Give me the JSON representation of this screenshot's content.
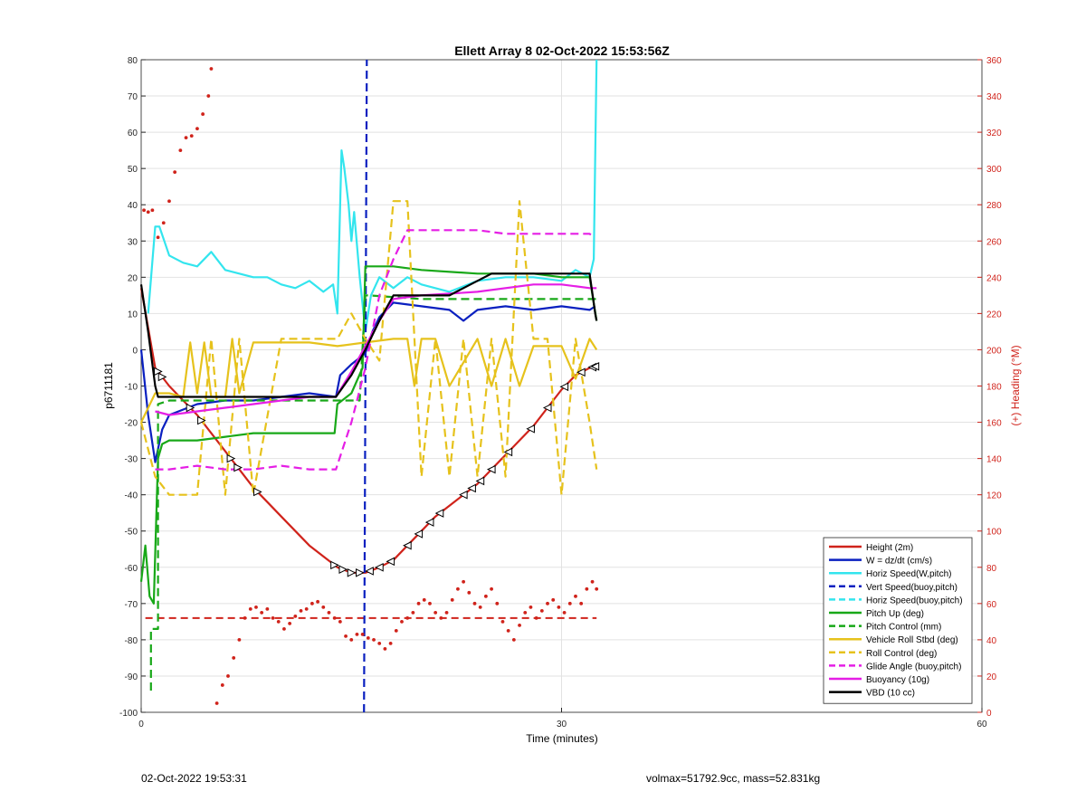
{
  "footer": {
    "left": "02-Oct-2022 19:53:31",
    "right": "volmax=51792.9cc, mass=52.831kg"
  },
  "chart_data": {
    "type": "line",
    "title": "Ellett Array 8 02-Oct-2022 15:53:56Z",
    "xlabel": "Time (minutes)",
    "ylabel": "p6711181",
    "ylabel_right": "(+) Heading (°M)",
    "xlim": [
      0,
      60
    ],
    "ylim": [
      -100,
      80
    ],
    "ylim_right": [
      0,
      360
    ],
    "xticks": [
      0,
      30,
      60
    ],
    "yticks": [
      -100,
      -90,
      -80,
      -70,
      -60,
      -50,
      -40,
      -30,
      -20,
      -10,
      0,
      10,
      20,
      30,
      40,
      50,
      60,
      70,
      80
    ],
    "yticks_right": [
      0,
      20,
      40,
      60,
      80,
      100,
      120,
      140,
      160,
      180,
      200,
      220,
      240,
      260,
      280,
      300,
      320,
      340,
      360
    ],
    "grid": true,
    "legend_position": "bottom-right",
    "colors": {
      "red": "#d0231b",
      "blue": "#0a20c0",
      "cyan": "#33e5ee",
      "green": "#18a818",
      "yellow": "#e6c21c",
      "magenta": "#e51ee5",
      "black": "#000000",
      "heading": "#d0231b",
      "grid": "#e2e2e2"
    },
    "series": [
      {
        "name": "Height (2m)",
        "color": "#d0231b",
        "dash": false,
        "x": [
          0,
          1,
          2,
          3,
          4,
          5,
          6,
          7,
          8,
          9,
          10,
          11,
          12,
          13,
          14,
          15,
          16,
          17,
          18,
          19,
          20,
          21,
          22,
          23,
          24,
          25,
          26,
          27,
          28,
          29,
          30,
          31,
          32,
          32.5
        ],
        "y": [
          17,
          -5,
          -10,
          -14,
          -18,
          -23,
          -28,
          -33,
          -38,
          -42,
          -46,
          -50,
          -54,
          -57,
          -60,
          -61.5,
          -61.5,
          -60,
          -58,
          -54,
          -50,
          -46,
          -43,
          -40,
          -37,
          -33,
          -29,
          -25,
          -21,
          -16,
          -11,
          -7,
          -5,
          -4.5
        ]
      },
      {
        "name": "W = dz/dt (cm/s)",
        "color": "#0a20c0",
        "dash": false,
        "x": [
          0,
          0.5,
          1,
          1.5,
          2,
          4,
          6,
          8,
          10,
          12,
          13.9,
          14.2,
          15,
          16,
          16.5,
          17,
          18,
          20,
          22,
          23,
          24,
          26,
          28,
          30,
          32,
          32.4
        ],
        "y": [
          0,
          -18,
          -31,
          -22,
          -18,
          -15,
          -14,
          -14,
          -13,
          -12,
          -13,
          -7,
          -4,
          -1,
          5,
          9,
          13,
          12,
          11,
          8,
          11,
          12,
          11,
          12,
          11,
          12
        ]
      },
      {
        "name": "Horiz Speed(W,pitch)",
        "color": "#33e5ee",
        "dash": false,
        "x": [
          0.5,
          1,
          1.3,
          2,
          3,
          4,
          5,
          6,
          7,
          8,
          9,
          10,
          11,
          12,
          13,
          13.7,
          14,
          14.3,
          14.5,
          14.8,
          15,
          15.2,
          15.6,
          16,
          16.4,
          17,
          18,
          19,
          20,
          22,
          24,
          26,
          28,
          30,
          31,
          32,
          32.3,
          32.5
        ],
        "y": [
          10,
          34,
          34,
          26,
          24,
          23,
          27,
          22,
          21,
          20,
          20,
          18,
          17,
          19,
          16,
          18,
          10,
          55,
          50,
          40,
          30,
          38,
          20,
          5,
          15,
          20,
          17,
          20,
          18,
          16,
          19,
          20,
          20,
          19,
          22,
          20,
          25,
          80
        ]
      },
      {
        "name": "Vert Speed(buoy,pitch)",
        "color": "#0a20c0",
        "dash": true,
        "x": [
          15.9,
          16.1
        ],
        "y": [
          -100,
          80
        ]
      },
      {
        "name": "Horiz Speed(buoy,pitch)",
        "color": "#33e5ee",
        "dash": true,
        "x": [],
        "y": []
      },
      {
        "name": "Pitch Up (deg)",
        "color": "#18a818",
        "dash": false,
        "x": [
          0,
          0.3,
          0.6,
          0.9,
          1.2,
          1.5,
          2,
          4,
          6,
          8,
          10,
          12,
          13.8,
          14,
          15,
          15.8,
          16,
          16.3,
          18,
          20,
          24,
          28,
          30,
          32,
          32.5
        ],
        "y": [
          -64,
          -54,
          -68,
          -70,
          -30,
          -26,
          -25,
          -25,
          -24,
          -23,
          -23,
          -23,
          -23,
          -15,
          -12,
          -5,
          23,
          23,
          23,
          22,
          21,
          21,
          20,
          20,
          8
        ]
      },
      {
        "name": "Pitch Control (mm)",
        "color": "#18a818",
        "dash": true,
        "x": [
          0.7,
          0.7,
          1.2,
          1.2,
          2,
          14,
          15.6,
          16,
          16.3,
          20,
          32.5
        ],
        "y": [
          -94,
          -77,
          -77,
          -15,
          -14,
          -14,
          -14,
          15,
          15,
          14,
          14
        ]
      },
      {
        "name": "Vehicle Roll Stbd (deg)",
        "color": "#e6c21c",
        "dash": false,
        "x": [
          0,
          1,
          2,
          3,
          3.5,
          4,
          4.5,
          5,
          6,
          6.5,
          7,
          8,
          10,
          12,
          14,
          16,
          18,
          19,
          19.5,
          20,
          21,
          22,
          24,
          25,
          26,
          27,
          28,
          30,
          31,
          32,
          32.5
        ],
        "y": [
          -20,
          -12,
          -12,
          -13,
          2,
          -12,
          2,
          -13,
          -13,
          3,
          -12,
          2,
          2,
          2,
          1,
          2,
          3,
          3,
          -10,
          3,
          3,
          -10,
          3,
          -10,
          3,
          -10,
          1,
          1,
          -8,
          3,
          0
        ]
      },
      {
        "name": "Roll Control (deg)",
        "color": "#e6c21c",
        "dash": true,
        "x": [
          0,
          1,
          2,
          4,
          5,
          6,
          7,
          8,
          10,
          12,
          14,
          15,
          16,
          17,
          18,
          19,
          20,
          21,
          22,
          23,
          24,
          25,
          26,
          27,
          28,
          29,
          30,
          31,
          32,
          32.5
        ],
        "y": [
          -20,
          -35,
          -40,
          -40,
          3,
          -40,
          3,
          -40,
          3,
          3,
          3,
          10,
          3,
          -3,
          41,
          41,
          -35,
          3,
          -35,
          3,
          -35,
          3,
          -35,
          41,
          3,
          3,
          -40,
          3,
          -20,
          -33
        ]
      },
      {
        "name": "Glide Angle (buoy,pitch)",
        "color": "#e51ee5",
        "dash": true,
        "x": [
          1,
          2,
          4,
          6,
          8,
          10,
          12,
          13.9,
          15,
          16,
          17,
          18,
          19,
          20,
          22,
          24,
          26,
          28,
          30,
          32,
          32.3
        ],
        "y": [
          -33,
          -33,
          -32,
          -33,
          -33,
          -32,
          -33,
          -33,
          -20,
          -5,
          15,
          25,
          33,
          33,
          33,
          33,
          32,
          32,
          32,
          32,
          31
        ]
      },
      {
        "name": "Buoyancy (10g)",
        "color": "#e51ee5",
        "dash": false,
        "x": [
          1,
          2,
          4,
          6,
          8,
          10,
          12,
          13.9,
          15,
          16,
          17,
          18,
          20,
          24,
          28,
          30,
          32,
          32.5
        ],
        "y": [
          -17,
          -18,
          -17,
          -16,
          -15,
          -14,
          -13,
          -13,
          -6,
          1,
          8,
          14,
          15,
          16,
          18,
          18,
          17,
          17
        ]
      },
      {
        "name": "VBD (10 cc)",
        "color": "#000000",
        "dash": false,
        "x": [
          0,
          0.5,
          1,
          1.2,
          2,
          4,
          6,
          8,
          10,
          12,
          13.9,
          15,
          16,
          17,
          18,
          19,
          22,
          23,
          24,
          25,
          26,
          28,
          30,
          32,
          32.4,
          32.5
        ],
        "y": [
          18,
          5,
          -10,
          -13,
          -13,
          -13,
          -13,
          -13,
          -13,
          -13,
          -13,
          -7,
          0,
          8,
          15,
          15,
          15,
          17,
          19,
          21,
          21,
          21,
          21,
          21,
          10,
          8
        ]
      }
    ],
    "heading_points": {
      "name": "Heading (°M)",
      "axis": "right",
      "color": "#d0231b",
      "x": [
        0.2,
        0.5,
        0.8,
        1.2,
        1.6,
        2.0,
        2.4,
        2.8,
        3.2,
        3.6,
        4.0,
        4.4,
        4.8,
        5.0,
        5.4,
        5.8,
        6.2,
        6.6,
        7.0,
        7.4,
        7.8,
        8.2,
        8.6,
        9.0,
        9.4,
        9.8,
        10.2,
        10.6,
        11.0,
        11.4,
        11.8,
        12.2,
        12.6,
        13.0,
        13.4,
        13.8,
        14.2,
        14.6,
        15.0,
        15.4,
        15.8,
        16.2,
        16.6,
        17.0,
        17.4,
        17.8,
        18.2,
        18.6,
        19.0,
        19.4,
        19.8,
        20.2,
        20.6,
        21.0,
        21.4,
        21.8,
        22.2,
        22.6,
        23.0,
        23.4,
        23.8,
        24.2,
        24.6,
        25.0,
        25.4,
        25.8,
        26.2,
        26.6,
        27.0,
        27.4,
        27.8,
        28.2,
        28.6,
        29.0,
        29.4,
        29.8,
        30.2,
        30.6,
        31.0,
        31.4,
        31.8,
        32.2,
        32.5
      ],
      "y": [
        277,
        276,
        277,
        262,
        270,
        282,
        298,
        310,
        317,
        318,
        322,
        330,
        340,
        355,
        5,
        15,
        20,
        30,
        40,
        52,
        57,
        58,
        55,
        57,
        52,
        50,
        46,
        49,
        53,
        56,
        57,
        60,
        61,
        58,
        55,
        52,
        50,
        42,
        40,
        43,
        43,
        41,
        40,
        38,
        35,
        38,
        45,
        50,
        52,
        55,
        60,
        62,
        60,
        55,
        52,
        55,
        62,
        68,
        72,
        66,
        60,
        58,
        64,
        68,
        60,
        50,
        45,
        40,
        48,
        55,
        58,
        52,
        56,
        60,
        62,
        58,
        55,
        60,
        64,
        60,
        68,
        72,
        68
      ]
    },
    "heading_reference": {
      "value": 52,
      "axis": "right",
      "color": "#d0231b",
      "dash": true
    },
    "vertical_marker": {
      "x": 16,
      "color": "#0a20c0",
      "dash": true
    }
  }
}
